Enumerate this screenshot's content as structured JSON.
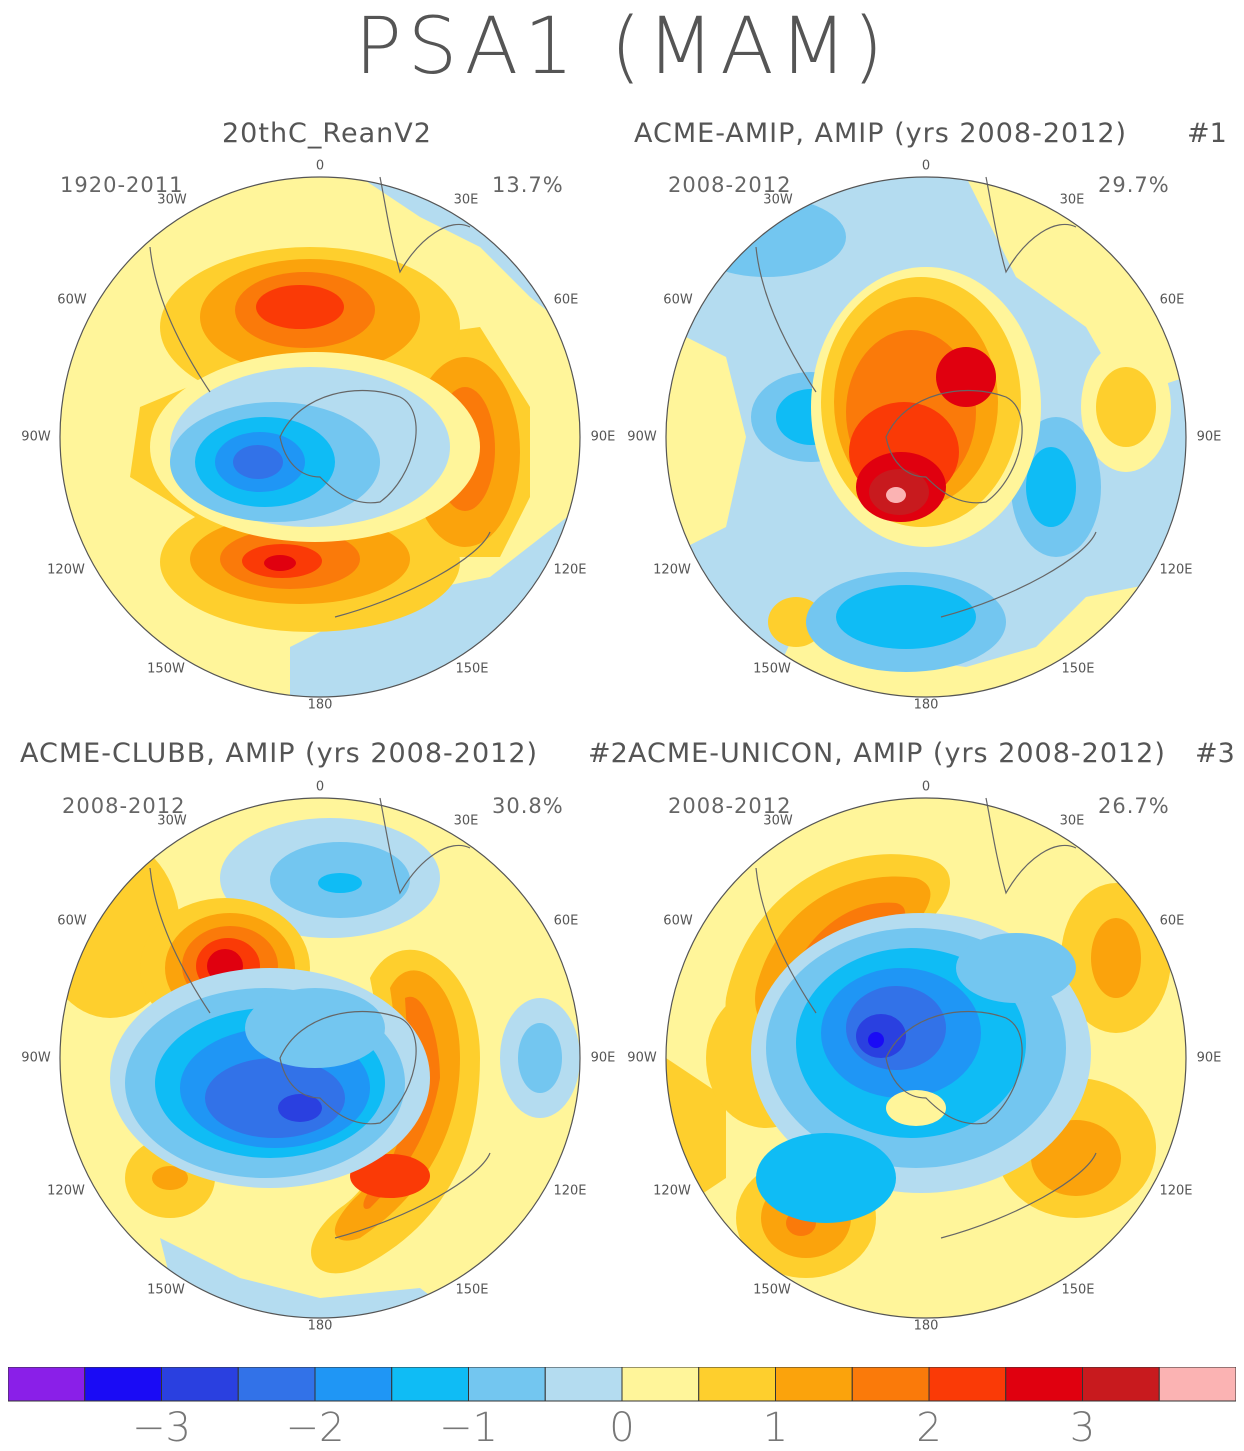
{
  "title": "PSA1 (MAM)",
  "panels": [
    {
      "title": "20thC_ReanV2",
      "tag": "",
      "years": "1920-2011",
      "pct": "13.7%",
      "left_lon": true
    },
    {
      "title": "ACME-AMIP, AMIP (yrs 2008-2012)",
      "tag": "#1",
      "years": "2008-2012",
      "pct": "29.7%",
      "left_lon": false
    },
    {
      "title": "ACME-CLUBB, AMIP (yrs 2008-2012)",
      "tag": "#2",
      "years": "2008-2012",
      "pct": "30.8%",
      "left_lon": true
    },
    {
      "title": "ACME-UNICON, AMIP (yrs 2008-2012)",
      "tag": "#3",
      "years": "2008-2012",
      "pct": "26.7%",
      "left_lon": false
    }
  ],
  "lon_labels": {
    "top": "0",
    "bottom": "180",
    "w30": "30W",
    "e30": "30E",
    "w60": "60W",
    "e60": "60E",
    "w90": "90W",
    "e90": "90E",
    "w120": "120W",
    "e120": "120E",
    "w150": "150W",
    "e150": "150E"
  },
  "colorbar": {
    "colors": [
      "#8a1fe8",
      "#1a0bf5",
      "#2a40e0",
      "#3272e8",
      "#1f96f5",
      "#0fbcf5",
      "#73c6f0",
      "#b4dcf0",
      "#fff59a",
      "#fecf2d",
      "#fba30c",
      "#fa7a0a",
      "#fa3a06",
      "#e0000f",
      "#c81a1e",
      "#fbb3b3"
    ],
    "labels": [
      "-3",
      "-2",
      "-1",
      "0",
      "1",
      "2",
      "3"
    ]
  }
}
